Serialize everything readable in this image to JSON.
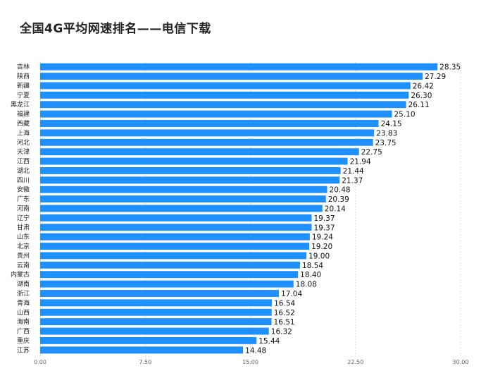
{
  "chart_data": {
    "type": "bar",
    "orientation": "horizontal",
    "title": "全国4G平均网速排名——电信下载",
    "xlabel": "",
    "ylabel": "",
    "xlim": [
      0,
      30
    ],
    "ticks": [
      "0.00",
      "7.50",
      "15.00",
      "22.50",
      "30.00"
    ],
    "grid": "vertical dotted",
    "bar_color": "#1e90ff",
    "categories": [
      "吉林",
      "陕西",
      "新疆",
      "宁夏",
      "黑龙江",
      "福建",
      "西藏",
      "上海",
      "河北",
      "天津",
      "江西",
      "湖北",
      "四川",
      "安徽",
      "广东",
      "河南",
      "辽宁",
      "甘肃",
      "山东",
      "北京",
      "贵州",
      "云南",
      "内蒙古",
      "湖南",
      "浙江",
      "青海",
      "山西",
      "海南",
      "广西",
      "重庆",
      "江苏"
    ],
    "values": [
      28.35,
      27.29,
      26.42,
      26.3,
      26.11,
      25.1,
      24.15,
      23.83,
      23.75,
      22.75,
      21.94,
      21.44,
      21.37,
      20.48,
      20.39,
      20.14,
      19.37,
      19.37,
      19.24,
      19.2,
      19.0,
      18.54,
      18.4,
      18.08,
      17.04,
      16.54,
      16.52,
      16.51,
      16.32,
      15.44,
      14.48
    ],
    "value_labels": [
      "28.35",
      "27.29",
      "26.42",
      "26.30",
      "26.11",
      "25.10",
      "24.15",
      "23.83",
      "23.75",
      "22.75",
      "21.94",
      "21.44",
      "21.37",
      "20.48",
      "20.39",
      "20.14",
      "19.37",
      "19.37",
      "19.24",
      "19.20",
      "19.00",
      "18.54",
      "18.40",
      "18.08",
      "17.04",
      "16.54",
      "16.52",
      "16.51",
      "16.32",
      "15.44",
      "14.48"
    ]
  }
}
